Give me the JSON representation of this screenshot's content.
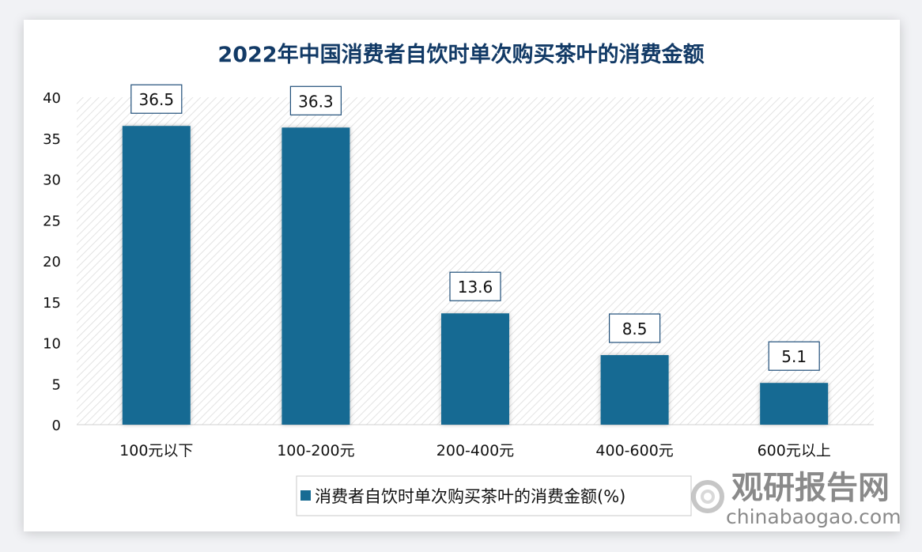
{
  "chart_data": {
    "type": "bar",
    "title": "2022年中国消费者自饮时单次购买茶叶的消费金额",
    "categories": [
      "100元以下",
      "100-200元",
      "200-400元",
      "400-600元",
      "600元以上"
    ],
    "series": [
      {
        "name": "消费者自饮时单次购买茶叶的消费金额(%)",
        "values": [
          36.5,
          36.3,
          13.6,
          8.5,
          5.1
        ]
      }
    ],
    "ylim": [
      0,
      40
    ],
    "yticks": [
      0,
      5,
      10,
      15,
      20,
      25,
      30,
      35,
      40
    ],
    "grid": false,
    "legend": "bottom",
    "bar_color": "#176b93",
    "plot_background": "diagonal-hatch"
  },
  "watermark": {
    "cn": "观研报告网",
    "en": "chinabaogao.com"
  }
}
